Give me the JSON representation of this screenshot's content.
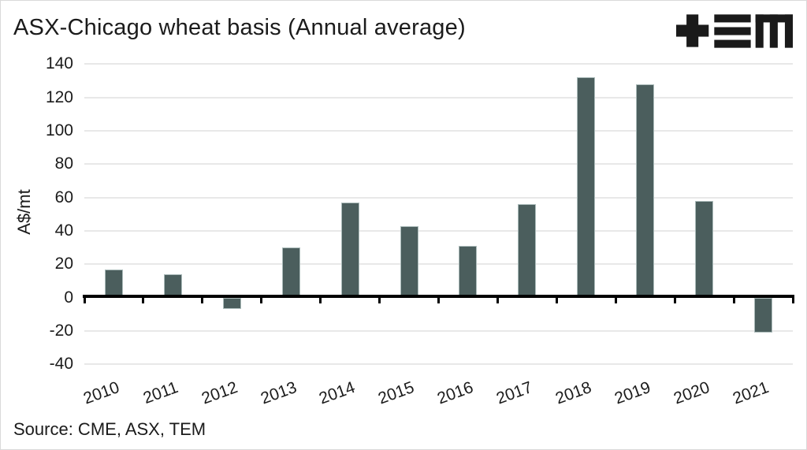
{
  "header": {
    "title": "ASX-Chicago wheat basis (Annual average)",
    "logo_name": "TEM (plus, triple-bar, M glyphs)"
  },
  "footer": {
    "source": "Source: CME, ASX, TEM"
  },
  "colors": {
    "bar_fill": "#4b5e5d",
    "bar_border": "#abbbba",
    "gridline": "#e8e8e8",
    "axis": "#000000",
    "text": "#1b1b1b",
    "frame_border": "#d9d9d9",
    "background": "#ffffff",
    "logo": "#1a1a1a"
  },
  "chart_data": {
    "type": "bar",
    "title": "ASX-Chicago wheat basis (Annual average)",
    "categories": [
      "2010",
      "2011",
      "2012",
      "2013",
      "2014",
      "2015",
      "2016",
      "2017",
      "2018",
      "2019",
      "2020",
      "2021"
    ],
    "values": [
      17,
      14,
      -7,
      30,
      57,
      43,
      31,
      56,
      132,
      128,
      58,
      -21
    ],
    "xlabel": "",
    "ylabel": "A$/mt",
    "ylim": [
      -40,
      140
    ],
    "yticks": [
      140,
      120,
      100,
      80,
      60,
      40,
      20,
      0,
      -20,
      -40
    ],
    "grid": "horizontal",
    "legend": "none",
    "x_tick_rotation_deg": -20,
    "source": "Source: CME, ASX, TEM"
  }
}
